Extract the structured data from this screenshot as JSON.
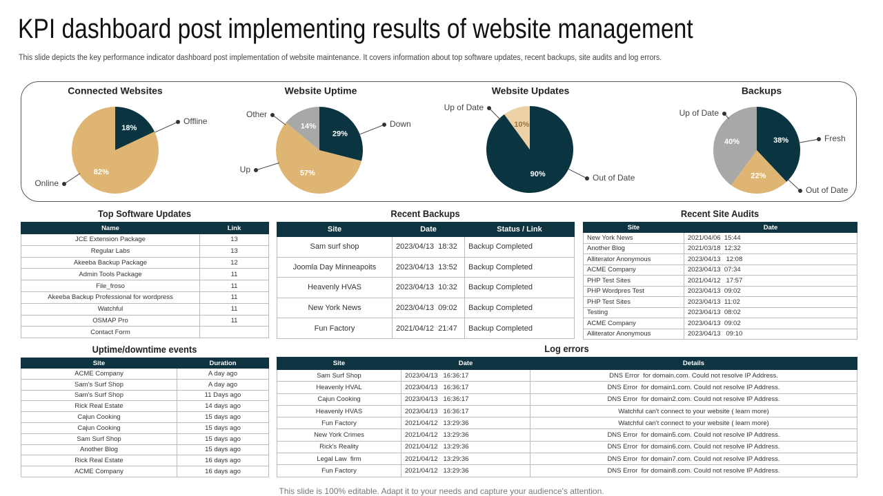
{
  "header": {
    "title": "KPI dashboard post implementing results of website management",
    "subtitle": "This slide depicts the key performance indicator dashboard post implementation of website maintenance. It covers information about top software updates, recent backups, site audits and log errors."
  },
  "chart_data": [
    {
      "type": "pie",
      "title": "Connected Websites",
      "categories": [
        "Offline",
        "Online"
      ],
      "values": [
        18,
        82
      ],
      "value_labels": [
        "18%",
        "82%"
      ],
      "colors": [
        "#0b3441",
        "#dfb573"
      ]
    },
    {
      "type": "pie",
      "title": "Website Uptime",
      "categories": [
        "Down",
        "Up",
        "Other"
      ],
      "values": [
        29,
        57,
        14
      ],
      "value_labels": [
        "29%",
        "57%",
        "14%"
      ],
      "colors": [
        "#0b3441",
        "#dfb573",
        "#a8a9a7"
      ]
    },
    {
      "type": "pie",
      "title": "Website Updates",
      "categories": [
        "Out of Date",
        "Up of Date"
      ],
      "values": [
        90,
        10
      ],
      "value_labels": [
        "90%",
        "10%"
      ],
      "colors": [
        "#0b3441",
        "#ecd0a6"
      ]
    },
    {
      "type": "pie",
      "title": "Backups",
      "categories": [
        "Fresh",
        "Out of Date",
        "Up of Date"
      ],
      "values": [
        38,
        22,
        40
      ],
      "value_labels": [
        "38%",
        "22%",
        "40%"
      ],
      "colors": [
        "#0b3441",
        "#dfb573",
        "#a8a9a7"
      ]
    }
  ],
  "tables": [
    {
      "title": "Top Software Updates",
      "columns": [
        "Name",
        "Link"
      ],
      "rows": [
        [
          "JCE Extension Package",
          13
        ],
        [
          "Regular Labs",
          13
        ],
        [
          "Akeeba Backup Package",
          12
        ],
        [
          "Admin Tools Package",
          11
        ],
        [
          "File_froso",
          11
        ],
        [
          "Akeeba Backup Professional for wordpress",
          11
        ],
        [
          "Watchful",
          11
        ],
        [
          "OSMAP Pro",
          11
        ],
        [
          "Contact Form",
          null
        ]
      ]
    },
    {
      "title": "Recent Backups",
      "columns": [
        "Site",
        "Date",
        "Status / Link"
      ],
      "rows": [
        [
          "Sam surf shop",
          "2023/04/13  18:32",
          "Backup Completed"
        ],
        [
          "Joomla Day Minneapoits",
          "2023/04/13  13:52",
          "Backup Completed"
        ],
        [
          "Heavenly HVAS",
          "2023/04/13  10:32",
          "Backup Completed"
        ],
        [
          "New York News",
          "2023/04/13  09:02",
          "Backup Completed"
        ],
        [
          "Fun Factory",
          "2021/04/12  21:47",
          "Backup Completed"
        ]
      ]
    },
    {
      "title": "Recent Site Audits",
      "columns": [
        "Site",
        "Date"
      ],
      "rows": [
        [
          "New York News",
          "2021/04/06  15:44"
        ],
        [
          "Another Blog",
          "2021/03/18  12:32"
        ],
        [
          "Alliterator Anonymous",
          "2023/04/13   12:08"
        ],
        [
          "ACME Company",
          "2023/04/13  07:34"
        ],
        [
          "PHP Test Sites",
          "2021/04/12   17:57"
        ],
        [
          "PHP Wordpres Test",
          "2023/04/13  09:02"
        ],
        [
          "PHP Test Sites",
          "2023/04/13  11:02"
        ],
        [
          "Testing",
          "2023/04/13  08:02"
        ],
        [
          "ACME Company",
          "2023/04/13  09:02"
        ],
        [
          "Alliterator Anonymous",
          "2023/04/13   09:10"
        ]
      ]
    },
    {
      "title": "Uptime/downtime events",
      "columns": [
        "Site",
        "Duration"
      ],
      "rows": [
        [
          "ACME Company",
          "A day ago"
        ],
        [
          "Sam's Surf Shop",
          "A day ago"
        ],
        [
          "Sam's Surf Shop",
          "11 Days ago"
        ],
        [
          "Rick Real Estate",
          "14 days ago"
        ],
        [
          "Cajun Cooking",
          "15 days ago"
        ],
        [
          "Cajun Cooking",
          "15 days ago"
        ],
        [
          "Sam Surf Shop",
          "15 days ago"
        ],
        [
          "Another Blog",
          "15 days ago"
        ],
        [
          "Rick Real Estate",
          "16 days ago"
        ],
        [
          "ACME Company",
          "16 days ago"
        ]
      ]
    },
    {
      "title": "Log errors",
      "columns": [
        "Site",
        "Date",
        "Details"
      ],
      "rows": [
        [
          "Sam Surf Shop",
          "2023/04/13   16:36:17",
          "DNS Error  for domain.com. Could not resolve IP Address."
        ],
        [
          "Heavenly HVAL",
          "2023/04/13   16:36:17",
          "DNS Error  for domain1.com. Could not resolve IP Address."
        ],
        [
          "Cajun Cooking",
          "2023/04/13   16:36:17",
          "DNS Error  for domain2.com. Could not resolve IP Address."
        ],
        [
          "Heavenly HVAS",
          "2023/04/13   16:36:17",
          "Watchful can't connect to your website ( learn more)"
        ],
        [
          "Fun Factory",
          "2021/04/12   13:29:36",
          "Watchful can't connect to your website ( learn more)"
        ],
        [
          "New York Crimes",
          "2021/04/12   13:29:36",
          "DNS Error  for domain5.com. Could not resolve IP Address."
        ],
        [
          "Rick's Reality",
          "2021/04/12   13:29:36",
          "DNS Error  for domain6.com. Could not resolve IP Address."
        ],
        [
          "Legal Law  firm",
          "2021/04/12   13:29:36",
          "DNS Error  for domain7.com. Could not resolve IP Address."
        ],
        [
          "Fun Factory",
          "2021/04/12   13:29:36",
          "DNS Error  for domain8.com. Could not resolve IP Address."
        ]
      ]
    }
  ],
  "footer": "This slide is 100% editable. Adapt it to your needs and capture your audience's attention."
}
